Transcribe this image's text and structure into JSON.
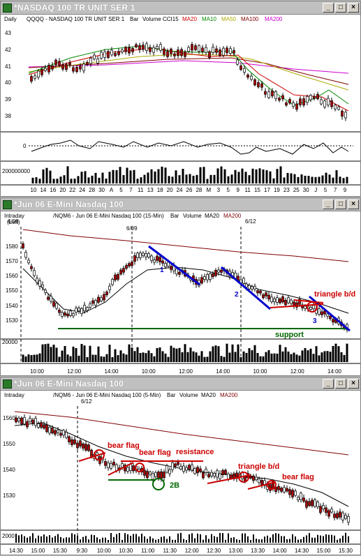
{
  "windows": [
    {
      "title": "*NASDAQ 100 TR UNIT SER 1",
      "legend": {
        "interval": "Daily",
        "axis": "(Left)",
        "symbol": "QQQQ - NASDAQ 100 TR UNIT SER 1",
        "style": "Bar",
        "volume": "Volume",
        "cci": "CCI15",
        "ma20": "MA20",
        "ma10": "MA10",
        "ma50": "MA50",
        "ma100": "MA100",
        "ma200": "MA200"
      },
      "price_ticks": [
        "43",
        "42",
        "41",
        "40",
        "39",
        "38"
      ],
      "cci_ticks": [
        "0"
      ],
      "volume_tick": "200000000",
      "date_ticks": [
        "10",
        "14",
        "16",
        "20",
        "22",
        "24",
        "28",
        "30",
        "A",
        "5",
        "7",
        "11",
        "13",
        "18",
        "20",
        "24",
        "26",
        "28",
        "M",
        "3",
        "5",
        "9",
        "11",
        "15",
        "17",
        "19",
        "23",
        "25",
        "30",
        "J",
        "5",
        "7",
        "9"
      ]
    },
    {
      "title": "*Jun 06  E-Mini Nasdaq 100",
      "legend": {
        "interval": "Intraday",
        "axis": "(Left)",
        "symbol": "/NQM6 - Jun 06 E-Mini Nasdaq 100 (15-Min)",
        "style": "Bar",
        "volume": "Volume",
        "ma20": "MA20",
        "ma200": "MA200"
      },
      "date_markers": [
        "6/08",
        "6/09",
        "6/12"
      ],
      "price_ticks": [
        "1580",
        "1570",
        "1560",
        "1550",
        "1540",
        "1530"
      ],
      "volume_tick": "20000",
      "time_ticks": [
        "10:00",
        "12:00",
        "14:00",
        "10:00",
        "12:00",
        "14:00",
        "10:00",
        "12:00",
        "14:00"
      ],
      "annotations": {
        "wave1": "1",
        "wave2": "2",
        "wave3": "3",
        "triangle": "triangle b/d",
        "support": "support"
      }
    },
    {
      "title": "*Jun 06  E-Mini Nasdaq 100",
      "legend": {
        "interval": "Intraday",
        "axis": "(Left)",
        "symbol": "/NQM6 - Jun 06 E-Mini Nasdaq 100 (5-Min)",
        "style": "Bar",
        "volume": "Volume",
        "ma20": "MA20",
        "ma200": "MA200"
      },
      "date_markers": [
        "6/12"
      ],
      "price_ticks": [
        "1560",
        "1550",
        "1540",
        "1530"
      ],
      "volume_tick": "2000",
      "time_ticks": [
        "14:30",
        "15:00",
        "15:30",
        "9:30",
        "10:00",
        "10:30",
        "11:00",
        "11:30",
        "12:00",
        "12:30",
        "13:00",
        "13:30",
        "14:00",
        "14:30",
        "15:00",
        "15:30"
      ],
      "annotations": {
        "bear_flag_1": "bear flag",
        "bear_flag_2": "bear flag",
        "resistance": "resistance",
        "two_b": "2B",
        "triangle": "triangle b/d",
        "bear_flag_3": "bear flag"
      }
    }
  ],
  "window_buttons": {
    "minimize": "_",
    "maximize": "□",
    "close": "×"
  },
  "colors": {
    "titlebar": "#c0c0c0",
    "ma20_daily": "#cc0000",
    "ma10": "#008800",
    "ma50": "#cccc00",
    "ma100": "#800000",
    "ma200": "#cc00cc",
    "intraday_ma200": "#800000",
    "up_bar": "#000000",
    "down_bar": "#aa0000",
    "annot_red": "#cc0000",
    "annot_blue": "#0000cc",
    "annot_green": "#006600"
  }
}
